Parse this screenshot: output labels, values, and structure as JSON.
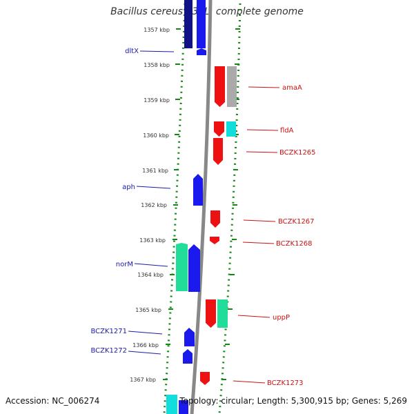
{
  "title": "Bacillus cereus E33L, complete genome",
  "footer": {
    "accession": "Accession: NC_006274",
    "summary": "Topology: circular; Length: 5,300,915 bp; Genes: 5,269"
  },
  "colors": {
    "scale": "#118811",
    "backbone": "#888888",
    "forward": "#1a1aee",
    "reverse": "#ee1111",
    "teal": "#22dd99",
    "cyan": "#11dddd",
    "grey": "#aaaaaa",
    "navy": "#111188",
    "left_label": "#1a1aaa",
    "right_label": "#cc1111"
  },
  "scale_labels": [
    "1357 kbp",
    "1358 kbp",
    "1359 kbp",
    "1360 kbp",
    "1361 kbp",
    "1362 kbp",
    "1363 kbp",
    "1364 kbp",
    "1365 kbp",
    "1366 kbp",
    "1367 kbp"
  ],
  "left_genes": [
    "dltX",
    "aph",
    "norM",
    "BCZK1271",
    "BCZK1272"
  ],
  "right_genes": [
    "amaA",
    "fldA",
    "BCZK1265",
    "BCZK1267",
    "BCZK1268",
    "uppP",
    "BCZK1273"
  ]
}
